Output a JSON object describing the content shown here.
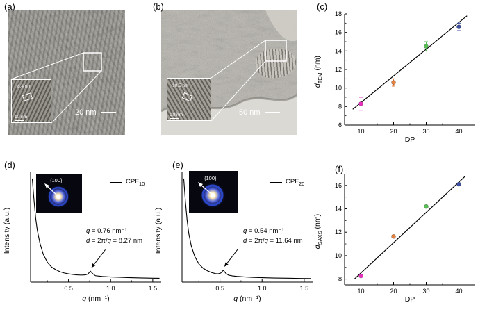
{
  "panels": {
    "a": {
      "label": "(a)",
      "scalebar_label": "20 nm",
      "inset": {
        "measure_label": "8.4 nm",
        "scalebar_label": "10 nm"
      }
    },
    "b": {
      "label": "(b)",
      "scalebar_label": "50 nm",
      "inset": {
        "measure_label": "10.5 nm",
        "scalebar_label": "20 nm"
      }
    },
    "c": {
      "label": "(c)",
      "xlabel": "DP",
      "ylabel": {
        "var": "d",
        "sub": "TEM",
        "unit": " (nm)"
      }
    },
    "d": {
      "label": "(d)",
      "ylabel": "Intensity (a.u.)",
      "xlabel": {
        "var": "q",
        "unit": " (nm⁻¹)"
      },
      "legend": {
        "base": "CPF",
        "sub": "10"
      },
      "inset_label": "{100}",
      "annotation": {
        "line1_var": "q",
        "line1_rest": " = 0.76 nm⁻¹",
        "line2_var": "d",
        "line2_mid": " = 2π/",
        "line2_var2": "q",
        "line2_rest": " = 8.27 nm"
      }
    },
    "e": {
      "label": "(e)",
      "ylabel": "Intensity (a.u.)",
      "xlabel": {
        "var": "q",
        "unit": " (nm⁻¹)"
      },
      "legend": {
        "base": "CPF",
        "sub": "20"
      },
      "inset_label": "{100}",
      "annotation": {
        "line1_var": "q",
        "line1_rest": " = 0.54 nm⁻¹",
        "line2_var": "d",
        "line2_mid": " = 2π/",
        "line2_var2": "q",
        "line2_rest": " = 11.64 nm"
      }
    },
    "f": {
      "label": "(f)",
      "xlabel": "DP",
      "ylabel": {
        "var": "d",
        "sub": "SAXS",
        "unit": " (nm)"
      }
    }
  },
  "chart_data": [
    {
      "id": "c",
      "type": "scatter",
      "title": "",
      "xlabel": "DP",
      "ylabel": "d_TEM (nm)",
      "xlim": [
        5,
        45
      ],
      "ylim": [
        6,
        18
      ],
      "xticks": [
        10,
        20,
        30,
        40
      ],
      "xtick_labels": [
        "10",
        "20",
        "30",
        "40"
      ],
      "yticks": [
        6,
        8,
        10,
        12,
        14,
        16,
        18
      ],
      "points": [
        {
          "x": 10,
          "y": 8.3,
          "err": 0.7,
          "color": "#e531be"
        },
        {
          "x": 20,
          "y": 10.6,
          "err": 0.4,
          "color": "#e8823e"
        },
        {
          "x": 30,
          "y": 14.5,
          "err": 0.5,
          "color": "#5bbf58"
        },
        {
          "x": 40,
          "y": 16.6,
          "err": 0.4,
          "color": "#3c4fa1"
        }
      ],
      "fit_line": [
        [
          7.5,
          7.7
        ],
        [
          42.5,
          17.8
        ]
      ]
    },
    {
      "id": "f",
      "type": "scatter",
      "title": "",
      "xlabel": "DP",
      "ylabel": "d_SAXS (nm)",
      "xlim": [
        5,
        45
      ],
      "ylim": [
        7.5,
        17
      ],
      "xticks": [
        10,
        20,
        30,
        40
      ],
      "xtick_labels": [
        "10",
        "20",
        "30",
        "40"
      ],
      "yticks": [
        8,
        10,
        12,
        14,
        16
      ],
      "points": [
        {
          "x": 10,
          "y": 8.27,
          "err": 0,
          "color": "#e531be"
        },
        {
          "x": 20,
          "y": 11.64,
          "err": 0,
          "color": "#e8823e"
        },
        {
          "x": 30,
          "y": 14.2,
          "err": 0,
          "color": "#5bbf58"
        },
        {
          "x": 40,
          "y": 16.1,
          "err": 0,
          "color": "#3c4fa1"
        }
      ],
      "fit_line": [
        [
          8,
          8.0
        ],
        [
          42,
          16.8
        ]
      ]
    },
    {
      "id": "d",
      "type": "line",
      "sample": "CPF10",
      "xlabel": "q (nm⁻¹)",
      "ylabel": "Intensity (a.u.)",
      "xlim": [
        0.05,
        1.6
      ],
      "ylim": [
        0,
        1.06
      ],
      "xticks": [
        0.5,
        1.0,
        1.5
      ],
      "xtick_labels": [
        "0.5",
        "1.0",
        "1.5"
      ],
      "peak": {
        "q": 0.76,
        "d_spacing_nm": 8.27
      },
      "curve": [
        [
          0.07,
          1.0
        ],
        [
          0.09,
          0.8
        ],
        [
          0.11,
          0.62
        ],
        [
          0.13,
          0.5
        ],
        [
          0.16,
          0.38
        ],
        [
          0.2,
          0.27
        ],
        [
          0.25,
          0.19
        ],
        [
          0.3,
          0.145
        ],
        [
          0.35,
          0.12
        ],
        [
          0.4,
          0.1
        ],
        [
          0.45,
          0.088
        ],
        [
          0.5,
          0.08
        ],
        [
          0.55,
          0.074
        ],
        [
          0.6,
          0.07
        ],
        [
          0.65,
          0.068
        ],
        [
          0.7,
          0.07
        ],
        [
          0.73,
          0.078
        ],
        [
          0.76,
          0.105
        ],
        [
          0.79,
          0.08
        ],
        [
          0.82,
          0.062
        ],
        [
          0.9,
          0.055
        ],
        [
          1.0,
          0.05
        ],
        [
          1.1,
          0.047
        ],
        [
          1.2,
          0.044
        ],
        [
          1.35,
          0.041
        ],
        [
          1.5,
          0.038
        ],
        [
          1.58,
          0.037
        ]
      ]
    },
    {
      "id": "e",
      "type": "line",
      "sample": "CPF20",
      "xlabel": "q (nm⁻¹)",
      "ylabel": "Intensity (a.u.)",
      "xlim": [
        0.05,
        1.6
      ],
      "ylim": [
        0,
        1.06
      ],
      "xticks": [
        0.5,
        1.0,
        1.5
      ],
      "xtick_labels": [
        "0.5",
        "1.0",
        "1.5"
      ],
      "peak": {
        "q": 0.54,
        "d_spacing_nm": 11.64
      },
      "curve": [
        [
          0.07,
          1.0
        ],
        [
          0.09,
          0.78
        ],
        [
          0.11,
          0.6
        ],
        [
          0.13,
          0.47
        ],
        [
          0.16,
          0.35
        ],
        [
          0.2,
          0.25
        ],
        [
          0.25,
          0.175
        ],
        [
          0.3,
          0.135
        ],
        [
          0.35,
          0.11
        ],
        [
          0.4,
          0.092
        ],
        [
          0.45,
          0.082
        ],
        [
          0.48,
          0.08
        ],
        [
          0.51,
          0.088
        ],
        [
          0.54,
          0.115
        ],
        [
          0.57,
          0.085
        ],
        [
          0.6,
          0.068
        ],
        [
          0.65,
          0.06
        ],
        [
          0.7,
          0.056
        ],
        [
          0.8,
          0.05
        ],
        [
          0.9,
          0.046
        ],
        [
          1.0,
          0.043
        ],
        [
          1.15,
          0.04
        ],
        [
          1.3,
          0.038
        ],
        [
          1.45,
          0.036
        ],
        [
          1.58,
          0.035
        ]
      ]
    }
  ]
}
